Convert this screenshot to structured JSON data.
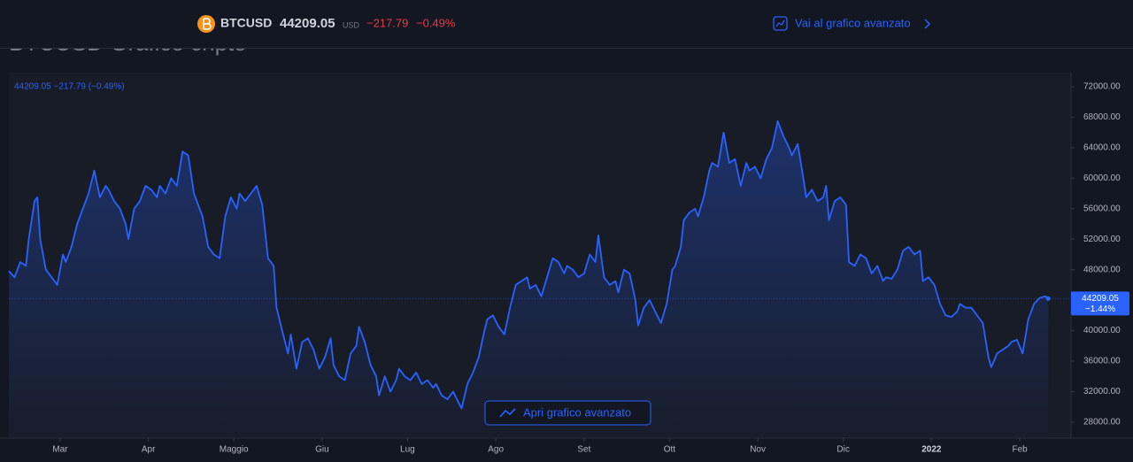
{
  "header": {
    "symbol": "BTCUSD",
    "price": "44209.05",
    "currency": "USD",
    "change": "−217.79",
    "change_percent": "−0.49%",
    "link": "Vai al grafico avanzato"
  },
  "button": "Apri grafico avanzato",
  "chart_data": {
    "type": "area",
    "title": "BTCUSD Grafico cripto",
    "legend": "44209.05 −217.79 (−0.49%)",
    "color": "#2962ff",
    "grid": false,
    "last_value": 44209.05,
    "last_change": "−1.44%",
    "xlim": [
      0,
      373
    ],
    "xticks": [
      {
        "value": 18,
        "label": "Mar"
      },
      {
        "value": 49,
        "label": "Apr"
      },
      {
        "value": 79,
        "label": "Maggio"
      },
      {
        "value": 110,
        "label": "Giu"
      },
      {
        "value": 140,
        "label": "Lug"
      },
      {
        "value": 171,
        "label": "Ago"
      },
      {
        "value": 202,
        "label": "Set"
      },
      {
        "value": 232,
        "label": "Ott"
      },
      {
        "value": 263,
        "label": "Nov"
      },
      {
        "value": 293,
        "label": "Dic"
      },
      {
        "value": 324,
        "label": "2022"
      },
      {
        "value": 355,
        "label": "Feb"
      }
    ],
    "ylim": [
      25900,
      73860
    ],
    "yticks": [
      {
        "value": 28000,
        "label": "28000.00"
      },
      {
        "value": 32000,
        "label": "32000.00"
      },
      {
        "value": 36000,
        "label": "36000.00"
      },
      {
        "value": 40000,
        "label": "40000.00"
      },
      {
        "value": 44000,
        "label": "44000.00"
      },
      {
        "value": 48000,
        "label": "48000.00"
      },
      {
        "value": 52000,
        "label": "52000.00"
      },
      {
        "value": 56000,
        "label": "56000.00"
      },
      {
        "value": 60000,
        "label": "60000.00"
      },
      {
        "value": 64000,
        "label": "64000.00"
      },
      {
        "value": 68000,
        "label": "68000.00"
      },
      {
        "value": 72000,
        "label": "72000.00"
      }
    ],
    "x": [
      0,
      2,
      4,
      6,
      7,
      9,
      10,
      11,
      13,
      15,
      17,
      19,
      20,
      22,
      24,
      26,
      28,
      30,
      32,
      34,
      35,
      37,
      39,
      41,
      42,
      44,
      46,
      48,
      50,
      52,
      53,
      55,
      57,
      59,
      61,
      63,
      65,
      67,
      68,
      70,
      72,
      74,
      76,
      78,
      80,
      81,
      83,
      85,
      87,
      89,
      91,
      93,
      94,
      96,
      98,
      99,
      101,
      103,
      105,
      107,
      109,
      111,
      113,
      114,
      116,
      118,
      120,
      122,
      123,
      125,
      127,
      129,
      130,
      132,
      134,
      136,
      137,
      139,
      141,
      143,
      145,
      147,
      149,
      150,
      152,
      154,
      156,
      158,
      159,
      161,
      163,
      165,
      167,
      168,
      170,
      172,
      174,
      176,
      178,
      180,
      182,
      183,
      185,
      187,
      189,
      191,
      193,
      195,
      196,
      198,
      200,
      202,
      204,
      206,
      207,
      209,
      211,
      213,
      214,
      216,
      218,
      220,
      221,
      223,
      225,
      227,
      229,
      231,
      233,
      234,
      236,
      237,
      239,
      241,
      242,
      244,
      246,
      247,
      249,
      251,
      253,
      255,
      257,
      259,
      260,
      262,
      264,
      266,
      268,
      270,
      272,
      274,
      275,
      277,
      279,
      280,
      282,
      284,
      286,
      287,
      288,
      290,
      292,
      294,
      295,
      297,
      299,
      301,
      303,
      305,
      307,
      308,
      310,
      312,
      314,
      316,
      318,
      320,
      321,
      323,
      325,
      327,
      329,
      331,
      333,
      334,
      336,
      338,
      340,
      342,
      344,
      345,
      347,
      349,
      351,
      352,
      354,
      356,
      358,
      360,
      362,
      364,
      365
    ],
    "values": [
      47800,
      47000,
      49000,
      48500,
      52000,
      57000,
      57500,
      52000,
      48000,
      47000,
      46000,
      50000,
      49000,
      51000,
      54000,
      56000,
      58000,
      61000,
      57500,
      59000,
      58500,
      57000,
      56000,
      54000,
      52000,
      56000,
      57000,
      59000,
      58500,
      57500,
      59000,
      58000,
      60000,
      59000,
      63500,
      63000,
      58000,
      56000,
      55000,
      51000,
      50000,
      49500,
      55000,
      57500,
      56000,
      58000,
      57000,
      58000,
      59000,
      56500,
      49500,
      48500,
      43000,
      40000,
      37000,
      39500,
      35000,
      38500,
      39000,
      37500,
      35000,
      36500,
      39000,
      35500,
      34000,
      33500,
      37000,
      38000,
      40500,
      38500,
      35500,
      34000,
      31500,
      34000,
      32000,
      33500,
      35000,
      34000,
      33500,
      34500,
      33000,
      33500,
      32500,
      33000,
      31500,
      31000,
      32000,
      30500,
      29800,
      33000,
      34500,
      36500,
      40000,
      41500,
      42000,
      40500,
      39500,
      43000,
      46000,
      46500,
      47000,
      45500,
      46000,
      44500,
      47000,
      49500,
      49000,
      47500,
      48500,
      48000,
      47000,
      47500,
      50000,
      49000,
      52500,
      47000,
      46000,
      46500,
      45000,
      48000,
      47500,
      44000,
      40700,
      43000,
      44000,
      42500,
      41000,
      43500,
      48000,
      48500,
      51000,
      54500,
      55500,
      56000,
      55000,
      57500,
      61000,
      62000,
      61500,
      66000,
      62000,
      62500,
      59000,
      62000,
      61000,
      61500,
      60000,
      62500,
      64000,
      67500,
      65500,
      64000,
      63000,
      64500,
      60000,
      57500,
      58500,
      57000,
      57500,
      59000,
      54500,
      57000,
      57500,
      56500,
      49000,
      48500,
      50000,
      49500,
      47500,
      48500,
      46500,
      47000,
      46800,
      48000,
      50500,
      51000,
      50000,
      50500,
      46500,
      47000,
      46000,
      43500,
      42000,
      41800,
      42500,
      43500,
      43000,
      43000,
      42000,
      41000,
      36500,
      35200,
      37000,
      37500,
      38000,
      38500,
      38800,
      37000,
      41500,
      43500,
      44300,
      44500,
      44209.05
    ]
  }
}
